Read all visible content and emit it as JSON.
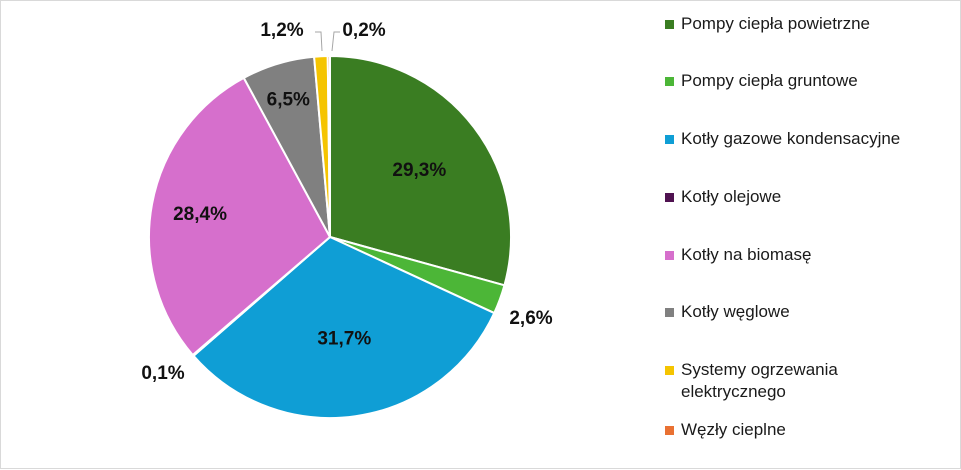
{
  "chart_data": {
    "type": "pie",
    "title": "",
    "slices": [
      {
        "label": "Pompy ciepła powietrzne",
        "value": 29.3,
        "value_label": "29,3%",
        "color": "#3a7d22"
      },
      {
        "label": "Pompy ciepła gruntowe",
        "value": 2.6,
        "value_label": "2,6%",
        "color": "#4cb637"
      },
      {
        "label": "Kotły gazowe kondensacyjne",
        "value": 31.7,
        "value_label": "31,7%",
        "color": "#0f9ed5"
      },
      {
        "label": "Kotły olejowe",
        "value": 0.1,
        "value_label": "0,1%",
        "color": "#4f1250"
      },
      {
        "label": "Kotły na biomasę",
        "value": 28.4,
        "value_label": "28,4%",
        "color": "#d66fcc"
      },
      {
        "label": "Kotły węglowe",
        "value": 6.5,
        "value_label": "6,5%",
        "color": "#808080"
      },
      {
        "label": "Systemy ogrzewania elektrycznego",
        "value": 1.2,
        "value_label": "1,2%",
        "color": "#f5c400"
      },
      {
        "label": "Węzły cieplne",
        "value": 0.2,
        "value_label": "0,2%",
        "color": "#e97132"
      }
    ],
    "legend_position": "right"
  },
  "legend": {
    "items": [
      "Pompy ciepła powietrzne",
      "Pompy ciepła gruntowe",
      "Kotły gazowe kondensacyjne",
      "Kotły olejowe",
      "Kotły na biomasę",
      "Kotły węglowe",
      "Systemy ogrzewania\nelektrycznego",
      "Węzły cieplne"
    ]
  }
}
